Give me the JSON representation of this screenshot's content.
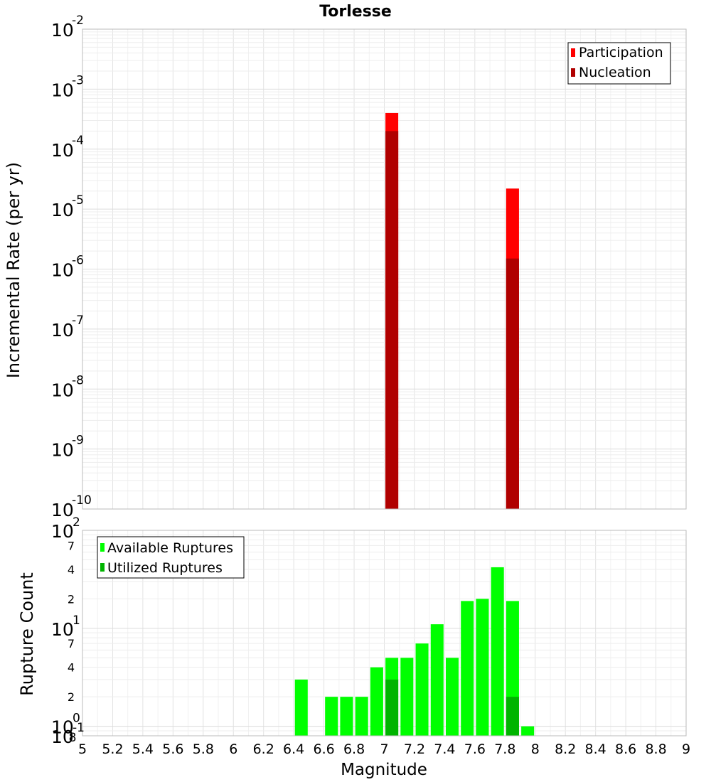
{
  "chart_data": [
    {
      "type": "bar",
      "title": "Torlesse",
      "xlabel": "",
      "ylabel": "Incremental Rate (per yr)",
      "xlim": [
        5,
        9
      ],
      "ylim": [
        1e-10,
        0.01
      ],
      "yscale": "log",
      "grid": true,
      "legend_position": "top-right",
      "y_ticks": [
        "10-10",
        "10-9",
        "10-8",
        "10-7",
        "10-6",
        "10-5",
        "10-4",
        "10-3",
        "10-2"
      ],
      "series": [
        {
          "name": "Participation",
          "color": "#ff0000",
          "x": [
            7.05,
            7.85
          ],
          "values": [
            0.0004,
            2.2e-05
          ]
        },
        {
          "name": "Nucleation",
          "color": "#b00000",
          "x": [
            7.05,
            7.85
          ],
          "values": [
            0.0002,
            1.5e-06
          ]
        }
      ]
    },
    {
      "type": "bar",
      "title": "",
      "xlabel": "Magnitude",
      "ylabel": "Rupture Count",
      "xlim": [
        5,
        9
      ],
      "ylim": [
        0.8,
        100
      ],
      "yscale": "log",
      "grid": true,
      "legend_position": "top-left",
      "x_ticks": [
        "5",
        "5.2",
        "5.4",
        "5.6",
        "5.8",
        "6",
        "6.2",
        "6.4",
        "6.6",
        "6.8",
        "7",
        "7.2",
        "7.4",
        "7.6",
        "7.8",
        "8",
        "8.2",
        "8.4",
        "8.6",
        "8.8",
        "9"
      ],
      "y_major_ticks": [
        "10-1",
        "100",
        "101",
        "102"
      ],
      "y_minor_ticks": [
        "8",
        "2",
        "4",
        "7",
        "2",
        "4",
        "7"
      ],
      "series": [
        {
          "name": "Available Ruptures",
          "color": "#00ff00",
          "x": [
            6.45,
            6.65,
            6.75,
            6.85,
            6.95,
            7.05,
            7.15,
            7.25,
            7.35,
            7.45,
            7.55,
            7.65,
            7.75,
            7.85,
            7.95
          ],
          "values": [
            3,
            2,
            2,
            2,
            4,
            5,
            5,
            7,
            11,
            5,
            19,
            20,
            42,
            19,
            1
          ]
        },
        {
          "name": "Utilized Ruptures",
          "color": "#00b400",
          "x": [
            7.05,
            7.85
          ],
          "values": [
            3,
            2
          ]
        }
      ]
    }
  ]
}
